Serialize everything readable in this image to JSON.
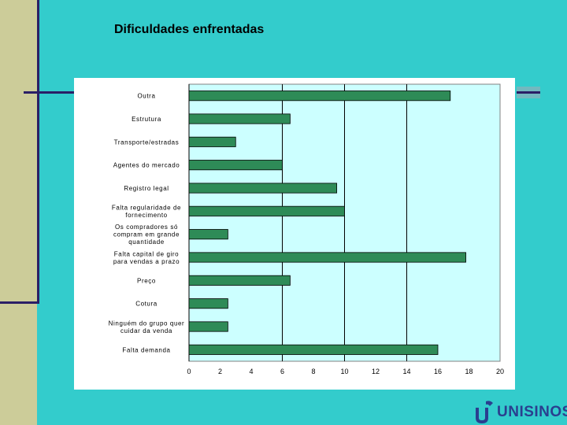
{
  "slide": {
    "title": "Dificuldades enfrentadas",
    "logo_text": "UNISINOS"
  },
  "colors": {
    "background": "#33cccc",
    "side_band": "#cccc99",
    "accent_line": "#2a1f66",
    "plot_area": "#ccffff",
    "bar_fill": "#2e8b57",
    "logo": "#2a3f8f"
  },
  "chart_data": {
    "type": "bar",
    "orientation": "horizontal",
    "categories": [
      "Outra",
      "Estrutura",
      "Transporte/estradas",
      "Agentes do mercado",
      "Registro legal",
      "Falta regularidade de fornecimento",
      "Os compradores só compram em grande quantidade",
      "Falta capital de giro para vendas a prazo",
      "Preço",
      "Cotura",
      "Ninguém do grupo quer cuidar da venda",
      "Falta demanda"
    ],
    "values": [
      16.8,
      6.5,
      3,
      6,
      9.5,
      10,
      2.5,
      17.8,
      6.5,
      2.5,
      2.5,
      16
    ],
    "xlim": [
      0,
      20
    ],
    "xticks": [
      0,
      2,
      4,
      6,
      8,
      10,
      12,
      14,
      16,
      18,
      20
    ],
    "grid": "vertical lines at 6, 10, 14",
    "legend": "none"
  }
}
